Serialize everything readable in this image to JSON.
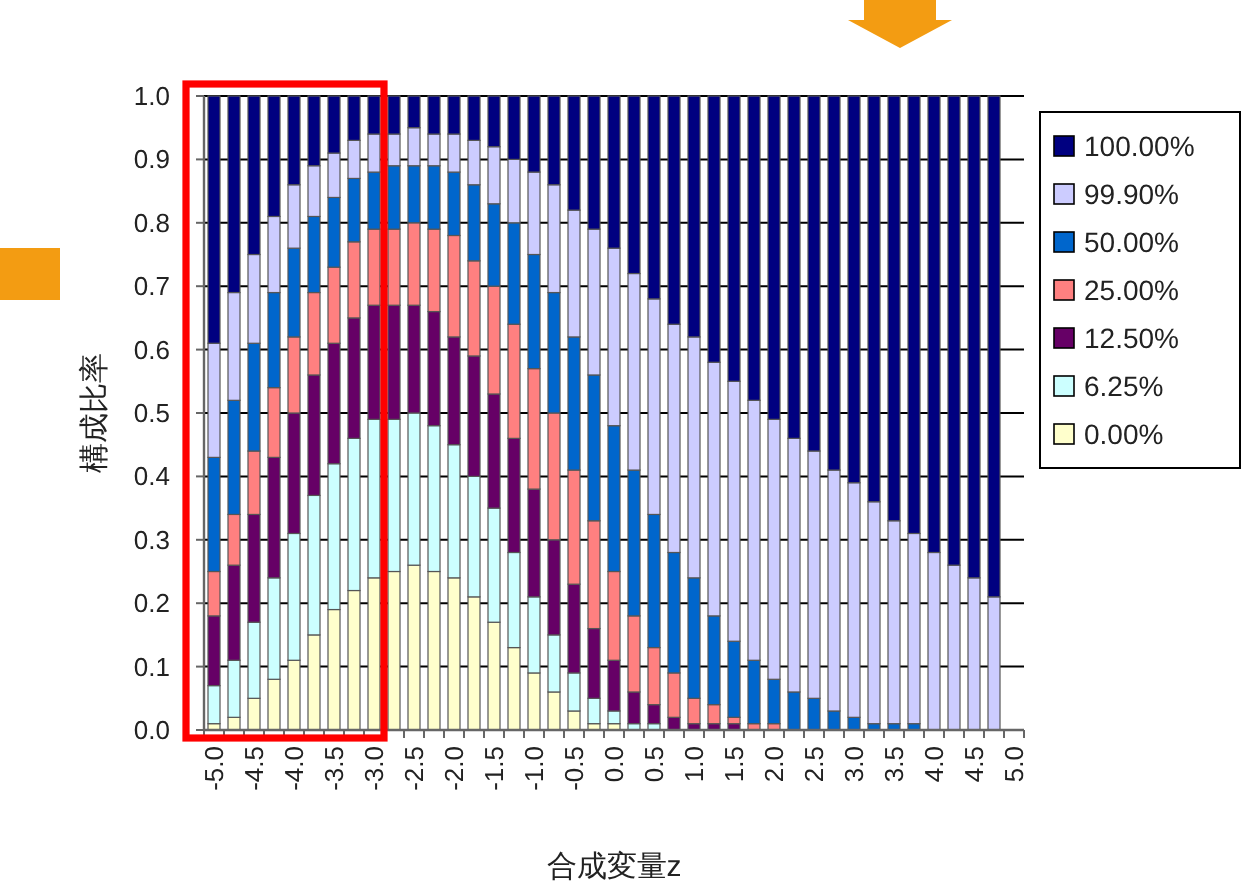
{
  "chart_data": {
    "type": "bar",
    "stacked": true,
    "xlabel": "合成変量z",
    "ylabel": "構成比率",
    "categories": [
      "-5.0",
      null,
      "-4.5",
      null,
      "-4.0",
      null,
      "-3.5",
      null,
      "-3.0",
      null,
      "-2.5",
      null,
      "-2.0",
      null,
      "-1.5",
      null,
      "-1.0",
      null,
      "-0.5",
      null,
      "0.0",
      null,
      "0.5",
      null,
      "1.0",
      null,
      "1.5",
      null,
      "2.0",
      null,
      "2.5",
      null,
      "3.0",
      null,
      "3.5",
      null,
      "4.0",
      null,
      "4.5",
      null,
      "5.0"
    ],
    "ylim": [
      0,
      1
    ],
    "yticks": [
      {
        "value": 0,
        "label": "0.0"
      },
      {
        "value": 0.1,
        "label": "0.1"
      },
      {
        "value": 0.2,
        "label": "0.2"
      },
      {
        "value": 0.3,
        "label": "0.3"
      },
      {
        "value": 0.4,
        "label": "0.4"
      },
      {
        "value": 0.5,
        "label": "0.5"
      },
      {
        "value": 0.6,
        "label": "0.6"
      },
      {
        "value": 0.7,
        "label": "0.7"
      },
      {
        "value": 0.8,
        "label": "0.8"
      },
      {
        "value": 0.9,
        "label": "0.9"
      },
      {
        "value": 1,
        "label": "1.0"
      }
    ],
    "grid": "y",
    "legend": "right",
    "series": [
      {
        "name": "0.00%",
        "color": "#ffffcc",
        "values": [
          0.01,
          0.02,
          0.05,
          0.08,
          0.11,
          0.15,
          0.19,
          0.22,
          0.24,
          0.25,
          0.26,
          0.25,
          0.24,
          0.21,
          0.17,
          0.13,
          0.09,
          0.06,
          0.03,
          0.01,
          0.01,
          0,
          0,
          0,
          0,
          0,
          0,
          0,
          0,
          0,
          0,
          0,
          0,
          0,
          0,
          0,
          0,
          0,
          0,
          0,
          null
        ]
      },
      {
        "name": "6.25%",
        "color": "#ccffff",
        "values": [
          0.06,
          0.09,
          0.12,
          0.16,
          0.2,
          0.22,
          0.23,
          0.24,
          0.25,
          0.24,
          0.24,
          0.23,
          0.21,
          0.19,
          0.18,
          0.15,
          0.12,
          0.09,
          0.06,
          0.04,
          0.02,
          0.01,
          0.01,
          0,
          0,
          0,
          0,
          0,
          0,
          0,
          0,
          0,
          0,
          0,
          0,
          0,
          0,
          0,
          0,
          0,
          null
        ]
      },
      {
        "name": "12.50%",
        "color": "#660066",
        "values": [
          0.11,
          0.15,
          0.17,
          0.19,
          0.19,
          0.19,
          0.19,
          0.19,
          0.18,
          0.18,
          0.17,
          0.18,
          0.17,
          0.19,
          0.18,
          0.18,
          0.17,
          0.15,
          0.14,
          0.11,
          0.08,
          0.05,
          0.03,
          0.02,
          0.01,
          0.01,
          0.01,
          0,
          0,
          0,
          0,
          0,
          0,
          0,
          0,
          0,
          0,
          0,
          0,
          0,
          null
        ]
      },
      {
        "name": "25.00%",
        "color": "#ff8080",
        "values": [
          0.07,
          0.08,
          0.1,
          0.11,
          0.12,
          0.13,
          0.12,
          0.12,
          0.12,
          0.12,
          0.13,
          0.13,
          0.16,
          0.15,
          0.17,
          0.18,
          0.19,
          0.2,
          0.18,
          0.17,
          0.14,
          0.12,
          0.09,
          0.07,
          0.04,
          0.03,
          0.01,
          0.01,
          0.01,
          0,
          0,
          0,
          0,
          0,
          0,
          0,
          0,
          0,
          0,
          0,
          null
        ]
      },
      {
        "name": "50.00%",
        "color": "#0066cc",
        "values": [
          0.18,
          0.18,
          0.17,
          0.15,
          0.14,
          0.12,
          0.11,
          0.1,
          0.09,
          0.1,
          0.09,
          0.1,
          0.1,
          0.12,
          0.13,
          0.16,
          0.18,
          0.19,
          0.21,
          0.23,
          0.23,
          0.23,
          0.21,
          0.19,
          0.19,
          0.14,
          0.12,
          0.1,
          0.07,
          0.06,
          0.05,
          0.03,
          0.02,
          0.01,
          0.01,
          0.01,
          0,
          0,
          0,
          0,
          null
        ]
      },
      {
        "name": "99.90%",
        "color": "#ccccff",
        "values": [
          0.18,
          0.17,
          0.14,
          0.12,
          0.1,
          0.08,
          0.07,
          0.06,
          0.06,
          0.05,
          0.06,
          0.05,
          0.06,
          0.07,
          0.09,
          0.1,
          0.13,
          0.17,
          0.2,
          0.23,
          0.28,
          0.31,
          0.34,
          0.36,
          0.38,
          0.4,
          0.41,
          0.41,
          0.41,
          0.4,
          0.39,
          0.38,
          0.37,
          0.35,
          0.32,
          0.3,
          0.28,
          0.26,
          0.24,
          0.21,
          null
        ]
      },
      {
        "name": "100.00%",
        "color": "#000080",
        "values": [
          0.39,
          0.31,
          0.25,
          0.19,
          0.14,
          0.11,
          0.09,
          0.07,
          0.06,
          0.06,
          0.05,
          0.06,
          0.06,
          0.07,
          0.08,
          0.1,
          0.12,
          0.14,
          0.18,
          0.21,
          0.24,
          0.28,
          0.32,
          0.36,
          0.38,
          0.42,
          0.45,
          0.48,
          0.51,
          0.54,
          0.56,
          0.59,
          0.61,
          0.64,
          0.67,
          0.69,
          0.72,
          0.74,
          0.76,
          0.79,
          null
        ]
      }
    ]
  }
}
